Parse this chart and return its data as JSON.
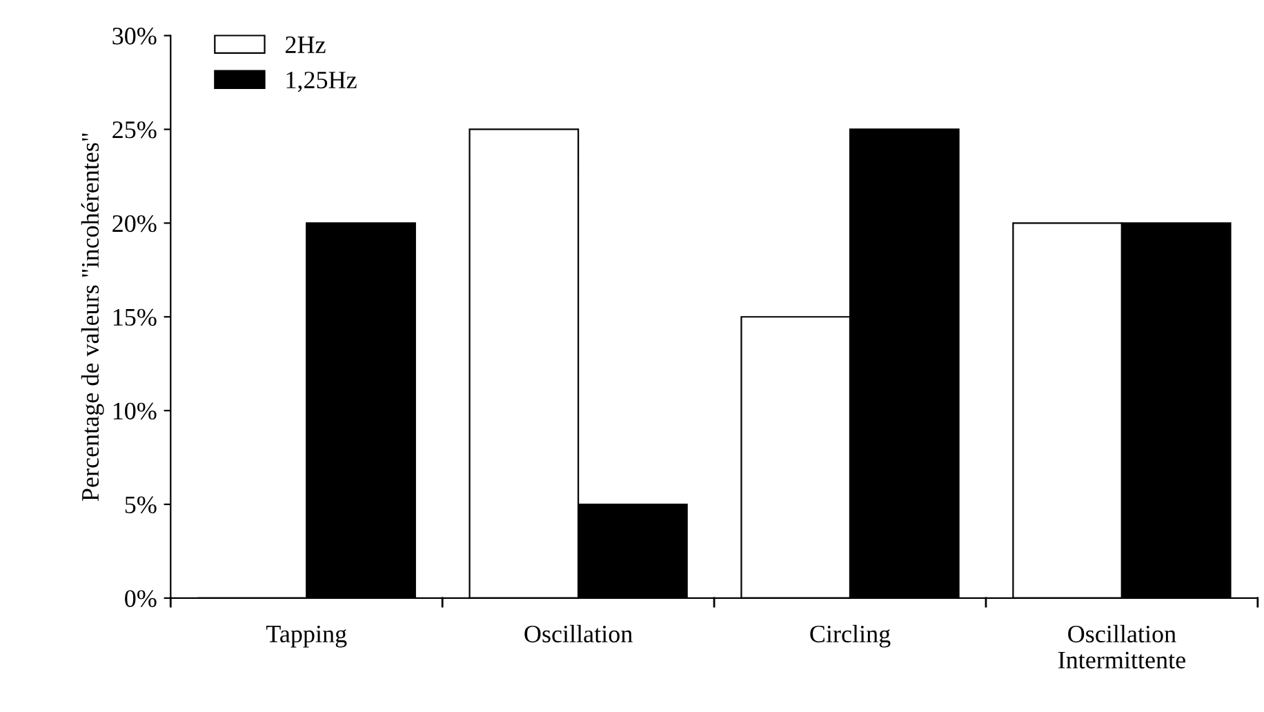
{
  "chart_data": {
    "type": "bar",
    "ylabel": "Percentage de valeurs \"incohérentes\"",
    "categories": [
      "Tapping",
      "Oscillation",
      "Circling",
      "Oscillation\nIntermittente"
    ],
    "series": [
      {
        "name": "2Hz",
        "color": "#ffffff",
        "values": [
          0,
          25,
          15,
          20
        ]
      },
      {
        "name": "1,25Hz",
        "color": "#000000",
        "values": [
          20,
          5,
          25,
          20
        ]
      }
    ],
    "ylim": [
      0,
      30
    ],
    "yticks": [
      {
        "value": 0,
        "label": "0%"
      },
      {
        "value": 5,
        "label": "5%"
      },
      {
        "value": 10,
        "label": "10%"
      },
      {
        "value": 15,
        "label": "15%"
      },
      {
        "value": 20,
        "label": "20%"
      },
      {
        "value": 25,
        "label": "25%"
      },
      {
        "value": 30,
        "label": "30%"
      }
    ],
    "grid": false,
    "legend": "top left"
  }
}
